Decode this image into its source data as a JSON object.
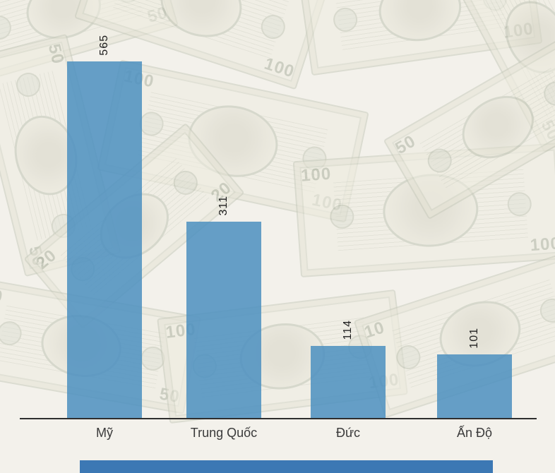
{
  "chart_data": {
    "type": "bar",
    "categories": [
      "Mỹ",
      "Trung Quốc",
      "Đức",
      "Ấn Độ"
    ],
    "values": [
      565,
      311,
      114,
      101
    ],
    "title": "",
    "xlabel": "",
    "ylabel": "",
    "ylim": [
      0,
      600
    ],
    "grid": false,
    "legend": false,
    "bar_color": "#4b8fc0",
    "value_labels_rotated_degrees": -90
  },
  "background": {
    "description": "faded collage of US dollar bills",
    "denominations": [
      "50",
      "100",
      "20",
      "10"
    ]
  },
  "footer": {
    "band_color": "#3c78b4"
  }
}
